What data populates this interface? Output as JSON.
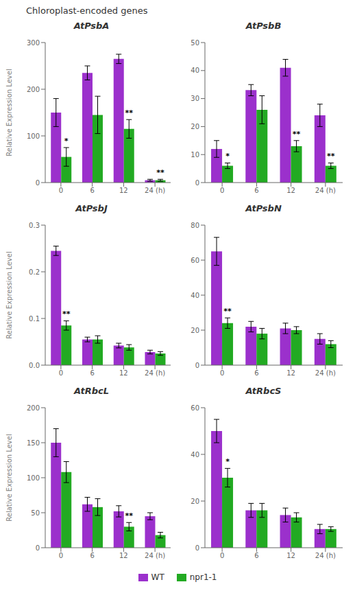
{
  "title": "Chloroplast-encoded genes",
  "legend": "bottom",
  "chart_data": [
    {
      "type": "bar",
      "title": "AtPsbA",
      "ylabel": "Relative Expression Level",
      "categories": [
        "0",
        "6",
        "12",
        "24 (h)"
      ],
      "series": [
        {
          "name": "WT",
          "color": "#9B30CC",
          "values": [
            150,
            235,
            265,
            5
          ],
          "errors": [
            30,
            15,
            10,
            2
          ]
        },
        {
          "name": "npr1-1",
          "color": "#22AA22",
          "values": [
            55,
            145,
            115,
            5
          ],
          "errors": [
            20,
            40,
            20,
            2
          ],
          "annotations": [
            "*",
            null,
            "**",
            "**"
          ]
        }
      ],
      "ylim": [
        0,
        300
      ],
      "yticks": [
        0,
        100,
        200,
        300
      ],
      "grid": false
    },
    {
      "type": "bar",
      "title": "AtPsbB",
      "categories": [
        "0",
        "6",
        "12",
        "24 (h)"
      ],
      "series": [
        {
          "name": "WT",
          "color": "#9B30CC",
          "values": [
            12,
            33,
            41,
            24
          ],
          "errors": [
            3,
            2,
            3,
            4
          ]
        },
        {
          "name": "npr1-1",
          "color": "#22AA22",
          "values": [
            6,
            26,
            13,
            6
          ],
          "errors": [
            1,
            5,
            2,
            1
          ],
          "annotations": [
            "*",
            null,
            "**",
            "**"
          ]
        }
      ],
      "ylim": [
        0,
        50
      ],
      "yticks": [
        0,
        10,
        20,
        30,
        40,
        50
      ],
      "grid": false
    },
    {
      "type": "bar",
      "title": "AtPsbJ",
      "ylabel": "Relative Expression Level",
      "categories": [
        "0",
        "6",
        "12",
        "24 (h)"
      ],
      "series": [
        {
          "name": "WT",
          "color": "#9B30CC",
          "values": [
            0.245,
            0.055,
            0.042,
            0.028
          ],
          "errors": [
            0.01,
            0.005,
            0.005,
            0.004
          ]
        },
        {
          "name": "npr1-1",
          "color": "#22AA22",
          "values": [
            0.085,
            0.055,
            0.038,
            0.025
          ],
          "errors": [
            0.01,
            0.008,
            0.006,
            0.004
          ],
          "annotations": [
            "**",
            null,
            null,
            null
          ]
        }
      ],
      "ylim": [
        0,
        0.3
      ],
      "yticks": [
        {
          "value": 0,
          "label": "0.0"
        },
        {
          "value": 0.1,
          "label": "0.1"
        },
        {
          "value": 0.2,
          "label": "0.2"
        },
        {
          "value": 0.3,
          "label": "0.3"
        }
      ],
      "grid": false
    },
    {
      "type": "bar",
      "title": "AtPsbN",
      "categories": [
        "0",
        "6",
        "12",
        "24 (h)"
      ],
      "series": [
        {
          "name": "WT",
          "color": "#9B30CC",
          "values": [
            65,
            22,
            21,
            15
          ],
          "errors": [
            8,
            3,
            3,
            3
          ]
        },
        {
          "name": "npr1-1",
          "color": "#22AA22",
          "values": [
            24,
            18,
            20,
            12
          ],
          "errors": [
            3,
            3,
            2,
            2
          ],
          "annotations": [
            "**",
            null,
            null,
            null
          ]
        }
      ],
      "ylim": [
        0,
        80
      ],
      "yticks": [
        0,
        20,
        40,
        60,
        80
      ],
      "grid": false
    },
    {
      "type": "bar",
      "title": "AtRbcL",
      "ylabel": "Relative Expression Level",
      "categories": [
        "0",
        "6",
        "12",
        "24 (h)"
      ],
      "series": [
        {
          "name": "WT",
          "color": "#9B30CC",
          "values": [
            150,
            62,
            52,
            45
          ],
          "errors": [
            20,
            10,
            8,
            5
          ]
        },
        {
          "name": "npr1-1",
          "color": "#22AA22",
          "values": [
            108,
            58,
            30,
            18
          ],
          "errors": [
            15,
            12,
            6,
            4
          ],
          "annotations": [
            null,
            null,
            "**",
            null
          ]
        }
      ],
      "ylim": [
        0,
        200
      ],
      "yticks": [
        0,
        50,
        100,
        150,
        200
      ],
      "grid": false
    },
    {
      "type": "bar",
      "title": "AtRbcS",
      "categories": [
        "0",
        "6",
        "12",
        "24 (h)"
      ],
      "series": [
        {
          "name": "WT",
          "color": "#9B30CC",
          "values": [
            50,
            16,
            14,
            8
          ],
          "errors": [
            5,
            3,
            3,
            2
          ]
        },
        {
          "name": "npr1-1",
          "color": "#22AA22",
          "values": [
            30,
            16,
            13,
            8
          ],
          "errors": [
            4,
            3,
            2,
            1
          ],
          "annotations": [
            "*",
            null,
            null,
            null
          ]
        }
      ],
      "ylim": [
        0,
        60
      ],
      "yticks": [
        0,
        20,
        40,
        60
      ],
      "grid": false
    }
  ]
}
